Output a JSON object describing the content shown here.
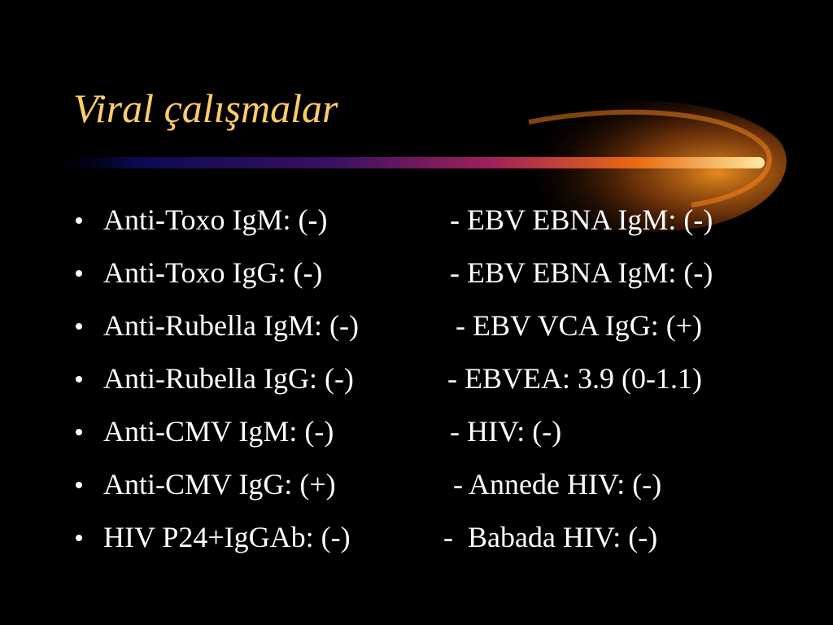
{
  "title": "Viral çalışmalar",
  "bullets": [
    {
      "left": "Anti-Toxo IgM: (-)",
      "right": "- EBV EBNA IgM: (-)"
    },
    {
      "left": "Anti-Toxo IgG: (-)",
      "right": "- EBV EBNA IgM: (-)"
    },
    {
      "left": "Anti-Rubella IgM: (-)",
      "right": "- EBV VCA IgG: (+)"
    },
    {
      "left": "Anti-Rubella IgG: (-)",
      "right": "- EBVEA: 3.9 (0-1.1)"
    },
    {
      "left": "Anti-CMV IgM: (-)",
      "right": "- HIV: (-)"
    },
    {
      "left": "Anti-CMV IgG: (+)",
      "right": "- Annede HIV: (-)"
    },
    {
      "left": "HIV P24+IgGAb: (-)",
      "right": "-  Babada HIV: (-)"
    }
  ]
}
